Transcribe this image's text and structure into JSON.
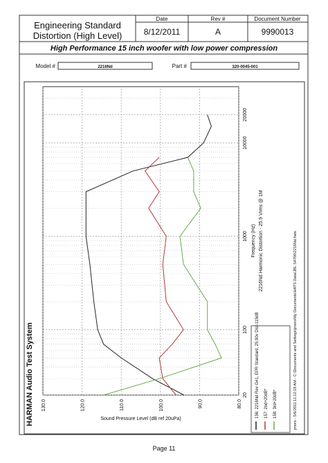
{
  "document": {
    "header": {
      "title_line1": "Engineering Standard",
      "title_line2": "Distortion (High Level)",
      "date_label": "Date",
      "date": "8/12/2011",
      "rev_label": "Rev #",
      "rev": "A",
      "doc_label": "Document Number",
      "doc": "9990013"
    },
    "subtitle": "High Performance 15 inch woofer with low power compression",
    "model_label": "Model #",
    "model": "2216Nd",
    "part_label": "Part #",
    "part": "320-0045-001",
    "system": "HARMAN Audio Test System",
    "file_note": "jmoro - 5/6/2011 11:12:18 AM - C:\\Documents and Settings\\jmoro\\My Documents\\HATS Data\\JBL S4700\\2216Nd.hats",
    "footer": "Page 11"
  },
  "chart_data": {
    "type": "line",
    "title": "2216Nd Harmonic Distortion - 25.9 Vrms @ 1M",
    "x_label": "Frequency (Hz)",
    "y_label": "Sound Pressure Level (dB ref 20uPa)",
    "x": [
      20,
      30,
      50,
      70,
      100,
      200,
      500,
      1000,
      2000,
      3000,
      5000,
      7000,
      10000,
      15000,
      20000
    ],
    "series": [
      {
        "name": "156: 2216Nd Rev G#1, EPR Standard, 25.90v Dist-115dB",
        "color": "#222222",
        "values": [
          94,
          102,
          110,
          114.5,
          116,
          117,
          118,
          119,
          119,
          119,
          107,
          93,
          89,
          87,
          88
        ]
      },
      {
        "name": "157: 2nd+20dB*",
        "color": "#b03a3a",
        "values": [
          96,
          99.4,
          100.3,
          97,
          94.1,
          98.5,
          99.4,
          98.5,
          103,
          100.3,
          103.9,
          100.3,
          null,
          null,
          null
        ]
      },
      {
        "name": "158: 3rd+20dB*",
        "color": "#6aa84f",
        "values": [
          114.5,
          100.3,
          84.4,
          86,
          88,
          88,
          94.1,
          95,
          89.7,
          91.5,
          91.5,
          93,
          null,
          null,
          null
        ]
      }
    ],
    "xlog": true,
    "xlim": [
      20,
      40000
    ],
    "xticks": [
      20,
      100,
      1000,
      10000,
      20000
    ],
    "minor_xticks": [
      30,
      40,
      50,
      60,
      70,
      80,
      90,
      200,
      300,
      400,
      500,
      600,
      700,
      800,
      900,
      2000,
      3000,
      4000,
      5000,
      6000,
      7000,
      8000,
      9000,
      30000
    ],
    "ylim": [
      80,
      130
    ],
    "yticks": [
      {
        "value": 80,
        "label": "80.0"
      },
      {
        "value": 90,
        "label": "90.0"
      },
      {
        "value": 100,
        "label": "100.0"
      },
      {
        "value": 110,
        "label": "110.0"
      },
      {
        "value": 120,
        "label": "120.0"
      },
      {
        "value": 130,
        "label": "130.0"
      }
    ],
    "grid": true
  }
}
